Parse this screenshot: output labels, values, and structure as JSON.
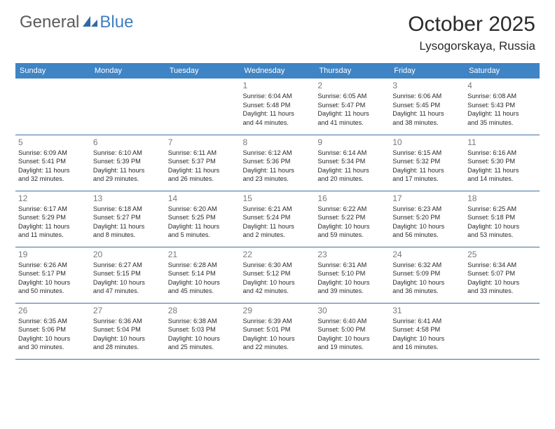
{
  "logo": {
    "general": "General",
    "blue": "Blue"
  },
  "title": "October 2025",
  "location": "Lysogorskaya, Russia",
  "colors": {
    "header_bg": "#3f84c4",
    "header_text": "#ffffff",
    "daynum": "#7a7a7a",
    "text": "#2a2a2a",
    "divider": "#3f6fa0",
    "logo_gray": "#5a5a5a",
    "logo_blue": "#3f7fbf"
  },
  "weekdays": [
    "Sunday",
    "Monday",
    "Tuesday",
    "Wednesday",
    "Thursday",
    "Friday",
    "Saturday"
  ],
  "weeks": [
    [
      null,
      null,
      null,
      {
        "n": "1",
        "sr": "Sunrise: 6:04 AM",
        "ss": "Sunset: 5:48 PM",
        "d1": "Daylight: 11 hours",
        "d2": "and 44 minutes."
      },
      {
        "n": "2",
        "sr": "Sunrise: 6:05 AM",
        "ss": "Sunset: 5:47 PM",
        "d1": "Daylight: 11 hours",
        "d2": "and 41 minutes."
      },
      {
        "n": "3",
        "sr": "Sunrise: 6:06 AM",
        "ss": "Sunset: 5:45 PM",
        "d1": "Daylight: 11 hours",
        "d2": "and 38 minutes."
      },
      {
        "n": "4",
        "sr": "Sunrise: 6:08 AM",
        "ss": "Sunset: 5:43 PM",
        "d1": "Daylight: 11 hours",
        "d2": "and 35 minutes."
      }
    ],
    [
      {
        "n": "5",
        "sr": "Sunrise: 6:09 AM",
        "ss": "Sunset: 5:41 PM",
        "d1": "Daylight: 11 hours",
        "d2": "and 32 minutes."
      },
      {
        "n": "6",
        "sr": "Sunrise: 6:10 AM",
        "ss": "Sunset: 5:39 PM",
        "d1": "Daylight: 11 hours",
        "d2": "and 29 minutes."
      },
      {
        "n": "7",
        "sr": "Sunrise: 6:11 AM",
        "ss": "Sunset: 5:37 PM",
        "d1": "Daylight: 11 hours",
        "d2": "and 26 minutes."
      },
      {
        "n": "8",
        "sr": "Sunrise: 6:12 AM",
        "ss": "Sunset: 5:36 PM",
        "d1": "Daylight: 11 hours",
        "d2": "and 23 minutes."
      },
      {
        "n": "9",
        "sr": "Sunrise: 6:14 AM",
        "ss": "Sunset: 5:34 PM",
        "d1": "Daylight: 11 hours",
        "d2": "and 20 minutes."
      },
      {
        "n": "10",
        "sr": "Sunrise: 6:15 AM",
        "ss": "Sunset: 5:32 PM",
        "d1": "Daylight: 11 hours",
        "d2": "and 17 minutes."
      },
      {
        "n": "11",
        "sr": "Sunrise: 6:16 AM",
        "ss": "Sunset: 5:30 PM",
        "d1": "Daylight: 11 hours",
        "d2": "and 14 minutes."
      }
    ],
    [
      {
        "n": "12",
        "sr": "Sunrise: 6:17 AM",
        "ss": "Sunset: 5:29 PM",
        "d1": "Daylight: 11 hours",
        "d2": "and 11 minutes."
      },
      {
        "n": "13",
        "sr": "Sunrise: 6:18 AM",
        "ss": "Sunset: 5:27 PM",
        "d1": "Daylight: 11 hours",
        "d2": "and 8 minutes."
      },
      {
        "n": "14",
        "sr": "Sunrise: 6:20 AM",
        "ss": "Sunset: 5:25 PM",
        "d1": "Daylight: 11 hours",
        "d2": "and 5 minutes."
      },
      {
        "n": "15",
        "sr": "Sunrise: 6:21 AM",
        "ss": "Sunset: 5:24 PM",
        "d1": "Daylight: 11 hours",
        "d2": "and 2 minutes."
      },
      {
        "n": "16",
        "sr": "Sunrise: 6:22 AM",
        "ss": "Sunset: 5:22 PM",
        "d1": "Daylight: 10 hours",
        "d2": "and 59 minutes."
      },
      {
        "n": "17",
        "sr": "Sunrise: 6:23 AM",
        "ss": "Sunset: 5:20 PM",
        "d1": "Daylight: 10 hours",
        "d2": "and 56 minutes."
      },
      {
        "n": "18",
        "sr": "Sunrise: 6:25 AM",
        "ss": "Sunset: 5:18 PM",
        "d1": "Daylight: 10 hours",
        "d2": "and 53 minutes."
      }
    ],
    [
      {
        "n": "19",
        "sr": "Sunrise: 6:26 AM",
        "ss": "Sunset: 5:17 PM",
        "d1": "Daylight: 10 hours",
        "d2": "and 50 minutes."
      },
      {
        "n": "20",
        "sr": "Sunrise: 6:27 AM",
        "ss": "Sunset: 5:15 PM",
        "d1": "Daylight: 10 hours",
        "d2": "and 47 minutes."
      },
      {
        "n": "21",
        "sr": "Sunrise: 6:28 AM",
        "ss": "Sunset: 5:14 PM",
        "d1": "Daylight: 10 hours",
        "d2": "and 45 minutes."
      },
      {
        "n": "22",
        "sr": "Sunrise: 6:30 AM",
        "ss": "Sunset: 5:12 PM",
        "d1": "Daylight: 10 hours",
        "d2": "and 42 minutes."
      },
      {
        "n": "23",
        "sr": "Sunrise: 6:31 AM",
        "ss": "Sunset: 5:10 PM",
        "d1": "Daylight: 10 hours",
        "d2": "and 39 minutes."
      },
      {
        "n": "24",
        "sr": "Sunrise: 6:32 AM",
        "ss": "Sunset: 5:09 PM",
        "d1": "Daylight: 10 hours",
        "d2": "and 36 minutes."
      },
      {
        "n": "25",
        "sr": "Sunrise: 6:34 AM",
        "ss": "Sunset: 5:07 PM",
        "d1": "Daylight: 10 hours",
        "d2": "and 33 minutes."
      }
    ],
    [
      {
        "n": "26",
        "sr": "Sunrise: 6:35 AM",
        "ss": "Sunset: 5:06 PM",
        "d1": "Daylight: 10 hours",
        "d2": "and 30 minutes."
      },
      {
        "n": "27",
        "sr": "Sunrise: 6:36 AM",
        "ss": "Sunset: 5:04 PM",
        "d1": "Daylight: 10 hours",
        "d2": "and 28 minutes."
      },
      {
        "n": "28",
        "sr": "Sunrise: 6:38 AM",
        "ss": "Sunset: 5:03 PM",
        "d1": "Daylight: 10 hours",
        "d2": "and 25 minutes."
      },
      {
        "n": "29",
        "sr": "Sunrise: 6:39 AM",
        "ss": "Sunset: 5:01 PM",
        "d1": "Daylight: 10 hours",
        "d2": "and 22 minutes."
      },
      {
        "n": "30",
        "sr": "Sunrise: 6:40 AM",
        "ss": "Sunset: 5:00 PM",
        "d1": "Daylight: 10 hours",
        "d2": "and 19 minutes."
      },
      {
        "n": "31",
        "sr": "Sunrise: 6:41 AM",
        "ss": "Sunset: 4:58 PM",
        "d1": "Daylight: 10 hours",
        "d2": "and 16 minutes."
      },
      null
    ]
  ]
}
